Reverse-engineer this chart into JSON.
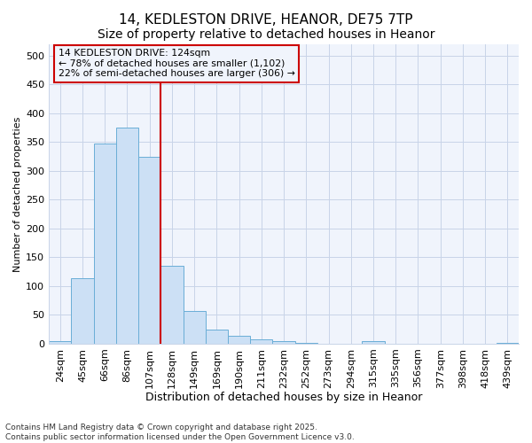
{
  "title1": "14, KEDLESTON DRIVE, HEANOR, DE75 7TP",
  "title2": "Size of property relative to detached houses in Heanor",
  "xlabel": "Distribution of detached houses by size in Heanor",
  "ylabel": "Number of detached properties",
  "categories": [
    "24sqm",
    "45sqm",
    "66sqm",
    "86sqm",
    "107sqm",
    "128sqm",
    "149sqm",
    "169sqm",
    "190sqm",
    "211sqm",
    "232sqm",
    "252sqm",
    "273sqm",
    "294sqm",
    "315sqm",
    "335sqm",
    "356sqm",
    "377sqm",
    "398sqm",
    "418sqm",
    "439sqm"
  ],
  "values": [
    5,
    113,
    348,
    376,
    325,
    135,
    57,
    25,
    14,
    8,
    5,
    2,
    0,
    0,
    5,
    0,
    0,
    0,
    0,
    0,
    2
  ],
  "bar_color": "#cce0f5",
  "bar_edge_color": "#6aaed6",
  "grid_color": "#c8d4e8",
  "bg_color": "#ffffff",
  "plot_bg_color": "#f0f4fc",
  "vline_x_idx": 5,
  "vline_color": "#cc0000",
  "annotation_line1": "14 KEDLESTON DRIVE: 124sqm",
  "annotation_line2": "← 78% of detached houses are smaller (1,102)",
  "annotation_line3": "22% of semi-detached houses are larger (306) →",
  "annotation_box_color": "#cc0000",
  "footer": "Contains HM Land Registry data © Crown copyright and database right 2025.\nContains public sector information licensed under the Open Government Licence v3.0.",
  "ylim": [
    0,
    520
  ],
  "yticks": [
    0,
    50,
    100,
    150,
    200,
    250,
    300,
    350,
    400,
    450,
    500
  ],
  "title1_fontsize": 11,
  "title2_fontsize": 10,
  "xlabel_fontsize": 9,
  "ylabel_fontsize": 8,
  "tick_fontsize": 8,
  "footer_fontsize": 6.5
}
